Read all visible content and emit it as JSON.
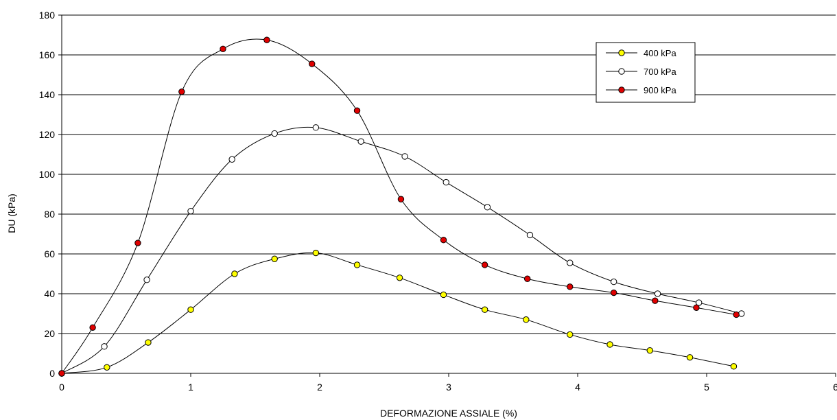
{
  "chart_data": {
    "type": "line",
    "xlabel": "DEFORMAZIONE ASSIALE (%)",
    "ylabel": "DU (kPa)",
    "xlim": [
      0,
      6
    ],
    "ylim": [
      0,
      180
    ],
    "x_ticks": [
      "0",
      "1",
      "2",
      "3",
      "4",
      "5",
      "6"
    ],
    "y_ticks": [
      "0",
      "20",
      "40",
      "60",
      "80",
      "100",
      "120",
      "140",
      "160",
      "180"
    ],
    "grid": "horizontal",
    "legend_position": "top-right",
    "smooth": true,
    "series": [
      {
        "name": "400 kPa",
        "color": "#ffff00",
        "points": [
          [
            0,
            0
          ],
          [
            0.35,
            3
          ],
          [
            0.67,
            15.5
          ],
          [
            1.0,
            32
          ],
          [
            1.34,
            50
          ],
          [
            1.65,
            57.5
          ],
          [
            1.97,
            60.5
          ],
          [
            2.29,
            54.5
          ],
          [
            2.62,
            48
          ],
          [
            2.96,
            39.5
          ],
          [
            3.28,
            32
          ],
          [
            3.6,
            27
          ],
          [
            3.94,
            19.5
          ],
          [
            4.25,
            14.5
          ],
          [
            4.56,
            11.5
          ],
          [
            4.87,
            8
          ],
          [
            5.21,
            3.5
          ]
        ]
      },
      {
        "name": "700 kPa",
        "color": "#ffffff",
        "points": [
          [
            0,
            0
          ],
          [
            0.33,
            13.5
          ],
          [
            0.66,
            47
          ],
          [
            1.0,
            81.5
          ],
          [
            1.32,
            107.5
          ],
          [
            1.65,
            120.5
          ],
          [
            1.97,
            123.5
          ],
          [
            2.32,
            116.5
          ],
          [
            2.66,
            109
          ],
          [
            2.98,
            96
          ],
          [
            3.3,
            83.5
          ],
          [
            3.63,
            69.5
          ],
          [
            3.94,
            55.5
          ],
          [
            4.28,
            46
          ],
          [
            4.62,
            40
          ],
          [
            4.94,
            35.5
          ],
          [
            5.27,
            30
          ]
        ]
      },
      {
        "name": "900 kPa",
        "color": "#e00000",
        "points": [
          [
            0,
            0
          ],
          [
            0.24,
            23
          ],
          [
            0.59,
            65.5
          ],
          [
            0.93,
            141.5
          ],
          [
            1.25,
            163
          ],
          [
            1.59,
            167.5
          ],
          [
            1.94,
            155.5
          ],
          [
            2.29,
            132
          ],
          [
            2.63,
            87.5
          ],
          [
            2.96,
            67
          ],
          [
            3.28,
            54.5
          ],
          [
            3.61,
            47.5
          ],
          [
            3.94,
            43.5
          ],
          [
            4.28,
            40.5
          ],
          [
            4.6,
            36.5
          ],
          [
            4.92,
            33
          ],
          [
            5.23,
            29.5
          ]
        ]
      }
    ]
  }
}
